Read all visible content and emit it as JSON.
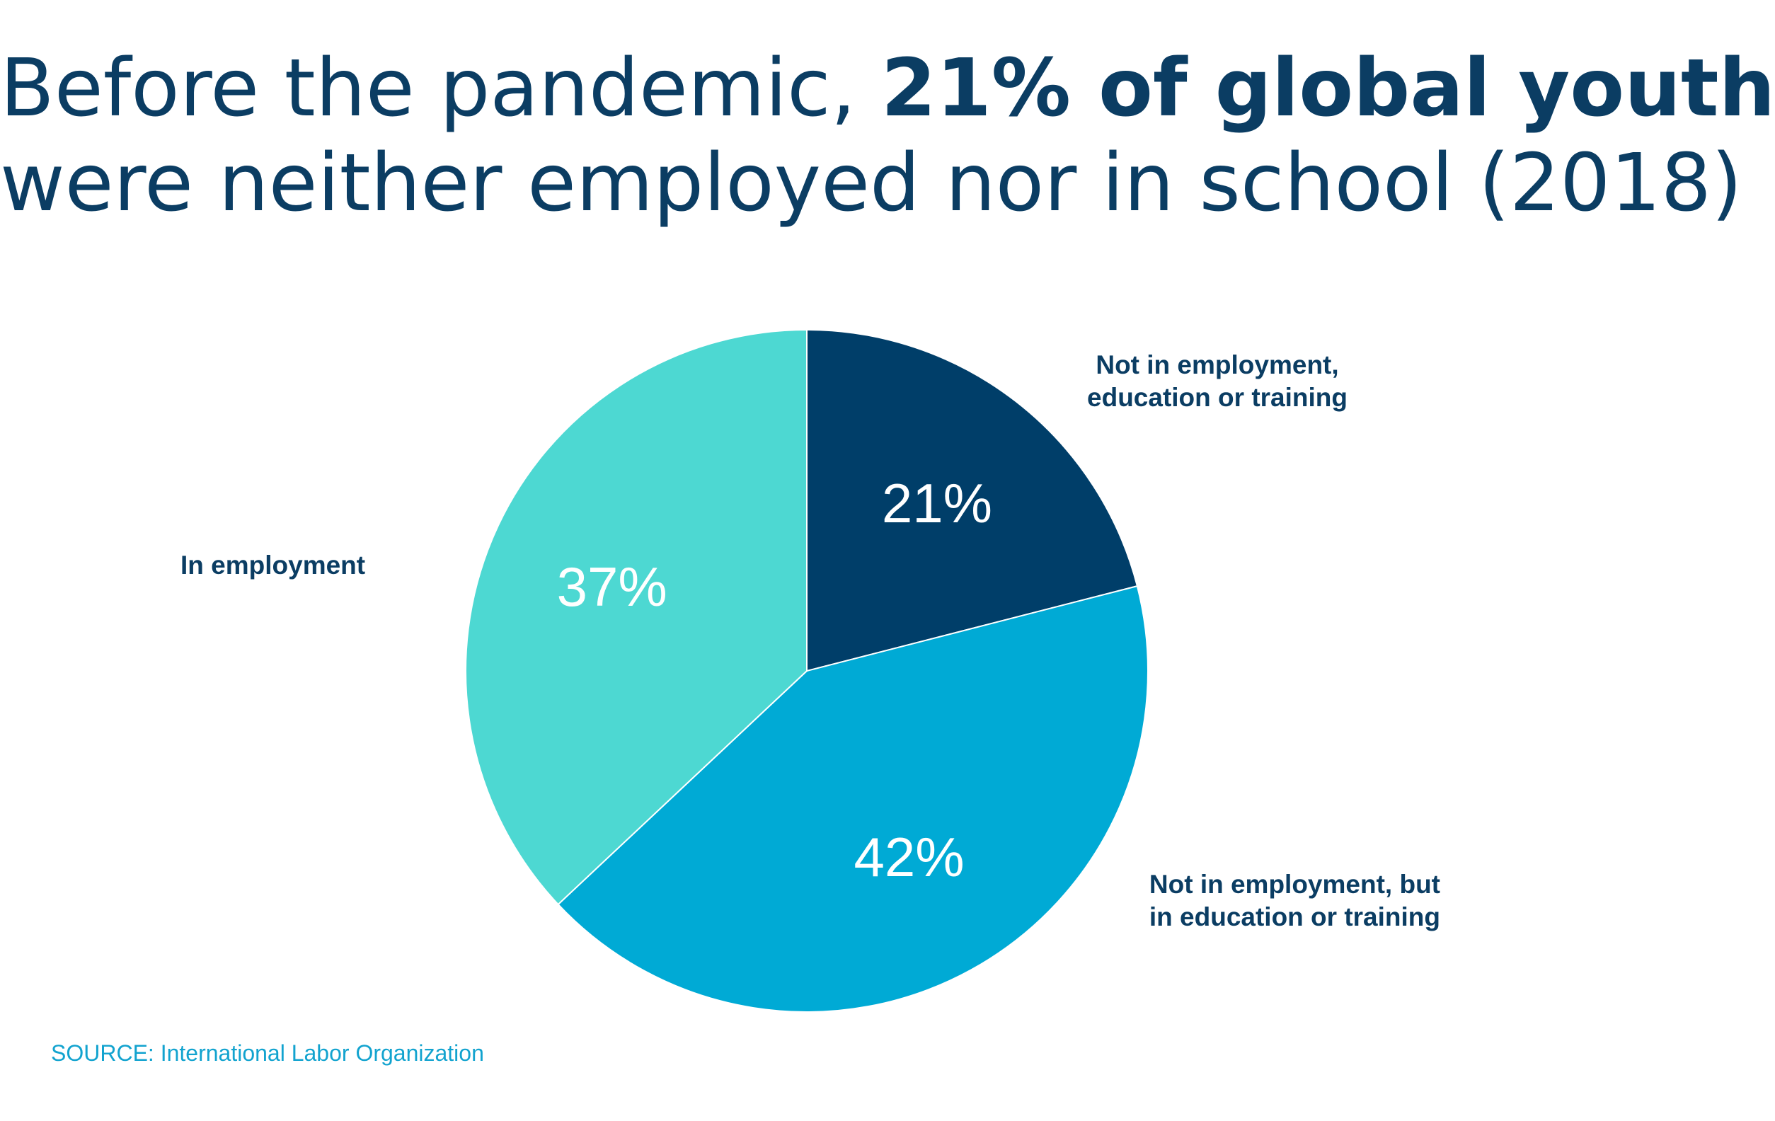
{
  "title": {
    "line1_prefix": "Before the pandemic, ",
    "line1_bold": "21% of global youth",
    "line2": "were neither employed nor in school (2018)"
  },
  "chart_data": {
    "type": "pie",
    "title": "Before the pandemic, 21% of global youth were neither employed nor in school (2018)",
    "slices": [
      {
        "label_lines": [
          "Not in employment,",
          "education or training"
        ],
        "value": 21,
        "display": "21%",
        "color": "#003e69"
      },
      {
        "label_lines": [
          "Not in employment, but",
          "in education or training"
        ],
        "value": 42,
        "display": "42%",
        "color": "#00aad5"
      },
      {
        "label_lines": [
          "In employment"
        ],
        "value": 37,
        "display": "37%",
        "color": "#4dd8d2"
      }
    ],
    "start": "12 o'clock",
    "direction": "clockwise"
  },
  "source": "SOURCE: International Labor Organization"
}
